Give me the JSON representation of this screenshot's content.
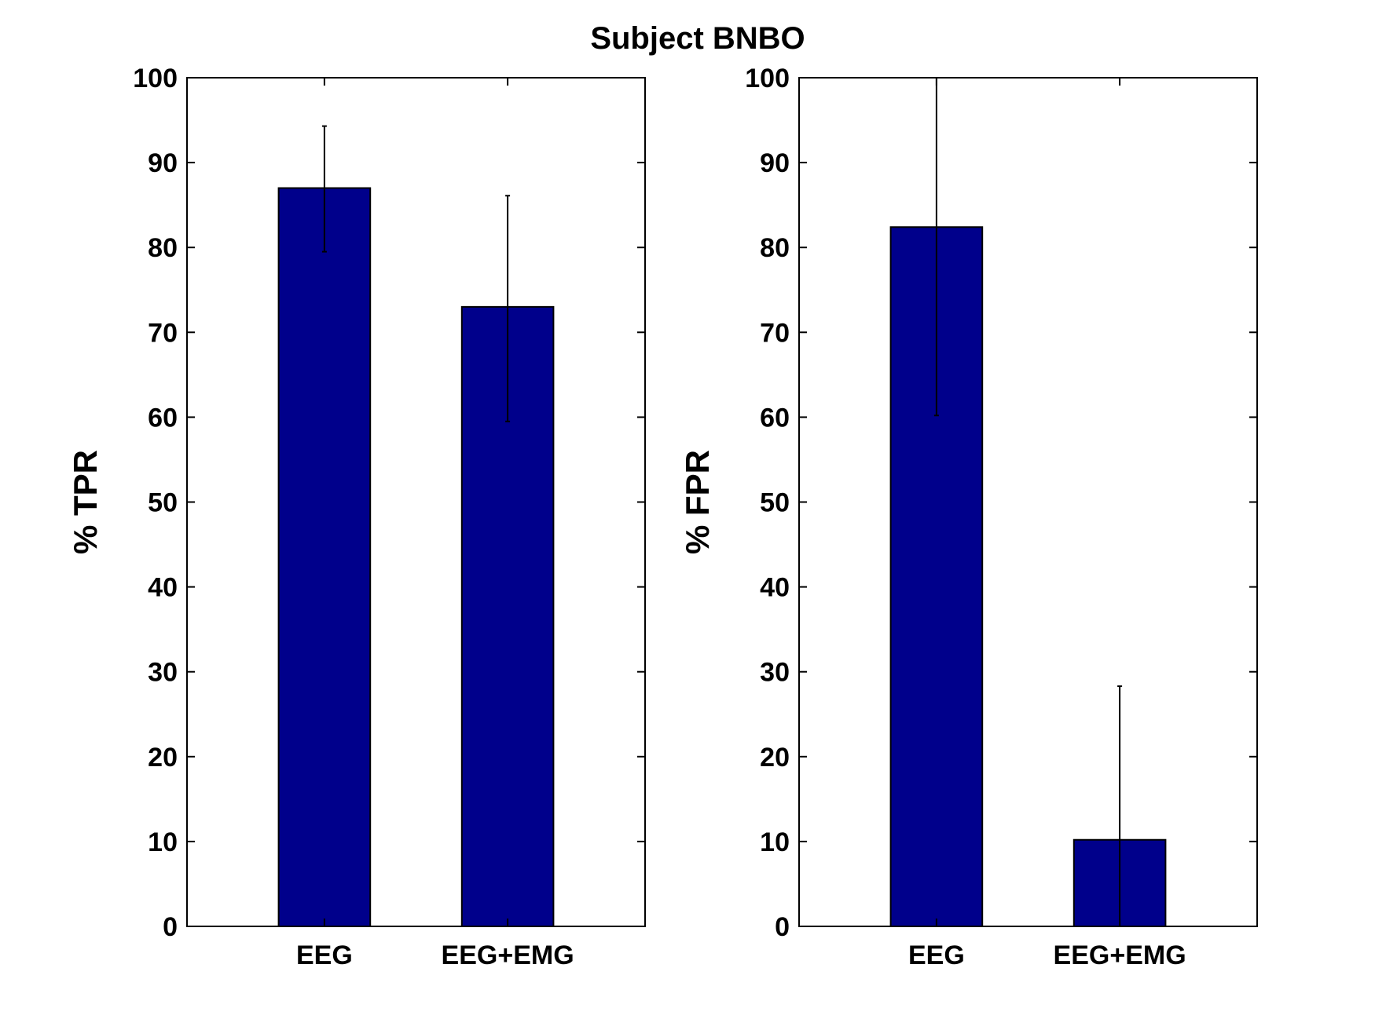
{
  "figure": {
    "title": "Subject BNBO"
  },
  "chart_data": [
    {
      "type": "bar",
      "title": "",
      "xlabel": "",
      "ylabel": "% TPR",
      "categories": [
        "EEG",
        "EEG+EMG"
      ],
      "values": [
        87,
        73
      ],
      "error_low": [
        79.5,
        59.5
      ],
      "error_high": [
        94.3,
        86.1
      ],
      "ylim": [
        0,
        100
      ],
      "yticks": [
        "0",
        "10",
        "20",
        "30",
        "40",
        "50",
        "60",
        "70",
        "80",
        "90",
        "100"
      ],
      "bar_color": "#00008B",
      "grid": false
    },
    {
      "type": "bar",
      "title": "",
      "xlabel": "",
      "ylabel": "% FPR",
      "categories": [
        "EEG",
        "EEG+EMG"
      ],
      "values": [
        82.4,
        10.2
      ],
      "error_low": [
        60.2,
        0
      ],
      "error_high": [
        100,
        28.3
      ],
      "ylim": [
        0,
        100
      ],
      "yticks": [
        "0",
        "10",
        "20",
        "30",
        "40",
        "50",
        "60",
        "70",
        "80",
        "90",
        "100"
      ],
      "bar_color": "#00008B",
      "grid": false
    }
  ]
}
